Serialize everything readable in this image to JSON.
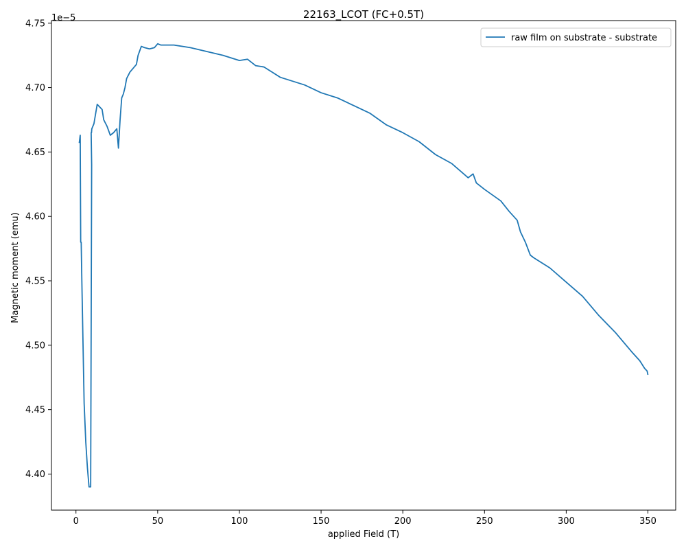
{
  "chart_data": {
    "type": "line",
    "title": "22163_LCOT (FC+0.5T)",
    "xlabel": "applied Field (T)",
    "ylabel": "Magnetic moment (emu)",
    "y_offset_text": "1e−5",
    "xlim": [
      -15,
      367
    ],
    "ylim": [
      4.372,
      4.752
    ],
    "x_ticks": [
      0,
      50,
      100,
      150,
      200,
      250,
      300,
      350
    ],
    "x_tick_labels": [
      "0",
      "50",
      "100",
      "150",
      "200",
      "250",
      "300",
      "350"
    ],
    "y_ticks": [
      4.4,
      4.45,
      4.5,
      4.55,
      4.6,
      4.65,
      4.7,
      4.75
    ],
    "y_tick_labels": [
      "4.40",
      "4.45",
      "4.50",
      "4.55",
      "4.60",
      "4.65",
      "4.70",
      "4.75"
    ],
    "grid": false,
    "legend_position": "top-right",
    "series": [
      {
        "name": "raw film on substrate - substrate",
        "color": "#1f77b4",
        "x": [
          2,
          2.3,
          2.6,
          2.9,
          3.2,
          3.6,
          5,
          6,
          7,
          8,
          9,
          9.6,
          9.3,
          9.5,
          9.7,
          11,
          13,
          16,
          17,
          19,
          21,
          23,
          25,
          26,
          27,
          28,
          29,
          30,
          31,
          33,
          35,
          37,
          38,
          40,
          42,
          45,
          48,
          50,
          52,
          55,
          60,
          70,
          80,
          90,
          100,
          105,
          110,
          115,
          120,
          125,
          130,
          140,
          150,
          160,
          170,
          180,
          190,
          200,
          210,
          220,
          230,
          240,
          243,
          245,
          250,
          260,
          265,
          270,
          272,
          275,
          278,
          280,
          290,
          300,
          310,
          320,
          330,
          340,
          345,
          348,
          349.5,
          350
        ],
        "y": [
          4.657,
          4.66,
          4.663,
          4.58,
          4.58,
          4.55,
          4.455,
          4.425,
          4.405,
          4.39,
          4.39,
          4.64,
          4.665,
          4.665,
          4.668,
          4.672,
          4.687,
          4.683,
          4.675,
          4.67,
          4.663,
          4.665,
          4.668,
          4.653,
          4.675,
          4.692,
          4.695,
          4.7,
          4.707,
          4.712,
          4.715,
          4.718,
          4.725,
          4.732,
          4.731,
          4.73,
          4.731,
          4.734,
          4.733,
          4.733,
          4.733,
          4.731,
          4.728,
          4.725,
          4.721,
          4.722,
          4.717,
          4.716,
          4.712,
          4.708,
          4.706,
          4.702,
          4.696,
          4.692,
          4.686,
          4.68,
          4.671,
          4.665,
          4.658,
          4.648,
          4.641,
          4.63,
          4.633,
          4.626,
          4.621,
          4.612,
          4.604,
          4.597,
          4.588,
          4.58,
          4.57,
          4.568,
          4.56,
          4.549,
          4.538,
          4.523,
          4.51,
          4.495,
          4.488,
          4.482,
          4.48,
          4.477
        ]
      }
    ]
  }
}
